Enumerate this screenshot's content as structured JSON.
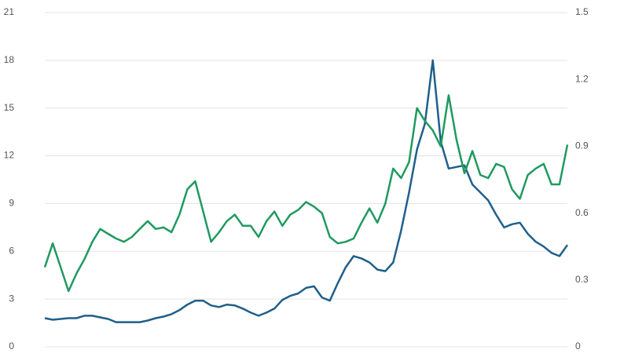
{
  "chart_data": {
    "type": "line",
    "categories": [
      null,
      null,
      null,
      null,
      null,
      null,
      null,
      null,
      null,
      null,
      null,
      null,
      null,
      null,
      null,
      null,
      null,
      null,
      null,
      null,
      null,
      null,
      null,
      null,
      null,
      null,
      null,
      null,
      null,
      null,
      null,
      null,
      null,
      null,
      null,
      null,
      null,
      null,
      null,
      null,
      null,
      null,
      null,
      null,
      null,
      null,
      null,
      null,
      null,
      null,
      null,
      null,
      null,
      null,
      null,
      null,
      null,
      null,
      null,
      null,
      null,
      null,
      null,
      null,
      null,
      null,
      null
    ],
    "series": [
      {
        "color": "#1f5f8b",
        "values": [
          1.8,
          1.7,
          1.75,
          1.8,
          1.8,
          1.95,
          1.95,
          1.85,
          1.75,
          1.55,
          1.55,
          1.55,
          1.55,
          1.65,
          1.8,
          1.9,
          2.05,
          2.3,
          2.65,
          2.9,
          2.9,
          2.6,
          2.5,
          2.65,
          2.6,
          2.4,
          2.15,
          1.95,
          2.15,
          2.4,
          2.95,
          3.2,
          3.35,
          3.7,
          3.8,
          3.1,
          2.9,
          4.0,
          5.0,
          5.7,
          5.55,
          5.3,
          4.85,
          4.75,
          5.3,
          7.3,
          9.7,
          12.4,
          14.0,
          18.0,
          12.9,
          11.2,
          11.3,
          11.4,
          10.2,
          9.7,
          9.2,
          8.3,
          7.5,
          7.7,
          7.8,
          7.1,
          6.6,
          6.3,
          5.9,
          5.7,
          6.4
        ]
      },
      {
        "color": "#1f9a5f",
        "axis": "y2",
        "values": [
          0.357,
          0.464,
          0.357,
          0.25,
          0.329,
          0.393,
          0.471,
          0.529,
          0.507,
          0.486,
          0.471,
          0.493,
          0.529,
          0.564,
          0.529,
          0.536,
          0.514,
          0.593,
          0.707,
          0.743,
          0.607,
          0.471,
          0.514,
          0.564,
          0.593,
          0.543,
          0.543,
          0.493,
          0.564,
          0.607,
          0.543,
          0.593,
          0.614,
          0.65,
          0.629,
          0.6,
          0.493,
          0.464,
          0.471,
          0.486,
          0.557,
          0.621,
          0.557,
          0.643,
          0.8,
          0.757,
          0.829,
          1.071,
          1.014,
          0.971,
          0.9,
          1.129,
          0.929,
          0.779,
          0.879,
          0.771,
          0.757,
          0.821,
          0.807,
          0.707,
          0.664,
          0.771,
          0.8,
          0.821,
          0.729,
          0.729,
          0.907
        ]
      }
    ],
    "ylim": [
      0,
      21
    ],
    "yticks": [
      0,
      3,
      6,
      9,
      12,
      15,
      18,
      21
    ],
    "y2lim": [
      0,
      1.5
    ],
    "y2ticks": [
      0,
      0.3,
      0.6,
      0.9,
      1.2,
      1.5
    ],
    "grid": true
  }
}
